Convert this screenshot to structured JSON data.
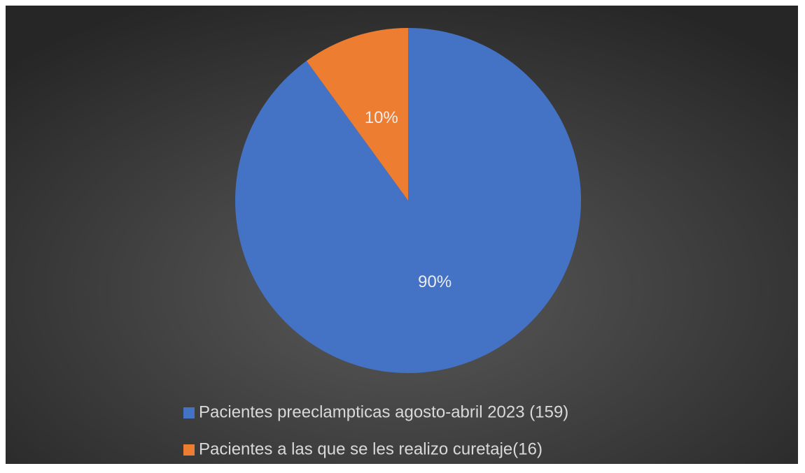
{
  "chart_data": {
    "type": "pie",
    "categories": [
      "Pacientes preeclampticas agosto-abril 2023 (159)",
      "Pacientes a las que se les realizo curetaje(16)"
    ],
    "values": [
      90,
      10
    ],
    "value_labels": [
      "90%",
      "10%"
    ],
    "colors": [
      "#4472c4",
      "#ed7d31"
    ],
    "legend": "bottom"
  }
}
